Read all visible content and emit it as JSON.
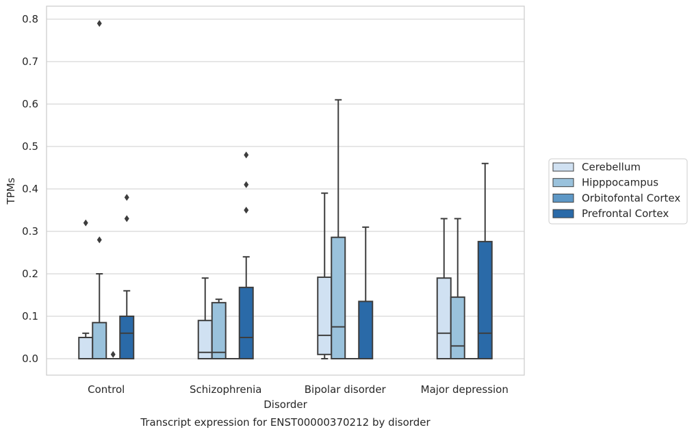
{
  "chart_data": {
    "type": "box",
    "caption": "Transcript expression for ENST00000370212 by disorder",
    "xlabel": "Disorder",
    "ylabel": "TPMs",
    "ylim": [
      -0.04,
      0.83
    ],
    "yticks": [
      "0.0",
      "0.1",
      "0.2",
      "0.3",
      "0.4",
      "0.5",
      "0.6",
      "0.7",
      "0.8"
    ],
    "grid": true,
    "legend_position": "right",
    "categories": [
      "Control",
      "Schizophrenia",
      "Bipolar disorder",
      "Major depression"
    ],
    "series": [
      {
        "name": "Cerebellum",
        "color": "#d0e1f2",
        "boxes": [
          {
            "whislo": 0.0,
            "q1": 0.0,
            "med": 0.0,
            "q3": 0.05,
            "whishi": 0.06,
            "fliers": [
              0.32
            ]
          },
          {
            "whislo": 0.0,
            "q1": 0.0,
            "med": 0.015,
            "q3": 0.09,
            "whishi": 0.19,
            "fliers": []
          },
          {
            "whislo": 0.0,
            "q1": 0.01,
            "med": 0.055,
            "q3": 0.192,
            "whishi": 0.39,
            "fliers": []
          },
          {
            "whislo": 0.0,
            "q1": 0.0,
            "med": 0.06,
            "q3": 0.19,
            "whishi": 0.33,
            "fliers": []
          }
        ]
      },
      {
        "name": "Hipppocampus",
        "color": "#9ac2dc",
        "boxes": [
          {
            "whislo": 0.0,
            "q1": 0.0,
            "med": 0.0,
            "q3": 0.085,
            "whishi": 0.2,
            "fliers": [
              0.28,
              0.79
            ]
          },
          {
            "whislo": 0.0,
            "q1": 0.0,
            "med": 0.015,
            "q3": 0.132,
            "whishi": 0.14,
            "fliers": []
          },
          {
            "whislo": 0.0,
            "q1": 0.0,
            "med": 0.075,
            "q3": 0.286,
            "whishi": 0.61,
            "fliers": []
          },
          {
            "whislo": 0.0,
            "q1": 0.0,
            "med": 0.03,
            "q3": 0.145,
            "whishi": 0.33,
            "fliers": []
          }
        ]
      },
      {
        "name": "Orbitofontal Cortex",
        "color": "#5e98c6",
        "boxes": [
          {
            "whislo": 0.0,
            "q1": 0.0,
            "med": 0.0,
            "q3": 0.0,
            "whishi": 0.0,
            "fliers": [
              0.01
            ]
          },
          {
            "whislo": 0.0,
            "q1": 0.0,
            "med": 0.0,
            "q3": 0.0,
            "whishi": 0.0,
            "fliers": []
          },
          {
            "whislo": 0.0,
            "q1": 0.0,
            "med": 0.0,
            "q3": 0.0,
            "whishi": 0.0,
            "fliers": []
          },
          {
            "whislo": 0.0,
            "q1": 0.0,
            "med": 0.0,
            "q3": 0.0,
            "whishi": 0.0,
            "fliers": []
          }
        ]
      },
      {
        "name": "Prefrontal Cortex",
        "color": "#2a6aa8",
        "boxes": [
          {
            "whislo": 0.0,
            "q1": 0.0,
            "med": 0.06,
            "q3": 0.1,
            "whishi": 0.16,
            "fliers": [
              0.33,
              0.38
            ]
          },
          {
            "whislo": 0.0,
            "q1": 0.0,
            "med": 0.05,
            "q3": 0.168,
            "whishi": 0.24,
            "fliers": [
              0.35,
              0.41,
              0.48
            ]
          },
          {
            "whislo": 0.0,
            "q1": 0.0,
            "med": 0.0,
            "q3": 0.135,
            "whishi": 0.31,
            "fliers": []
          },
          {
            "whislo": 0.0,
            "q1": 0.0,
            "med": 0.06,
            "q3": 0.276,
            "whishi": 0.46,
            "fliers": []
          }
        ]
      }
    ]
  }
}
